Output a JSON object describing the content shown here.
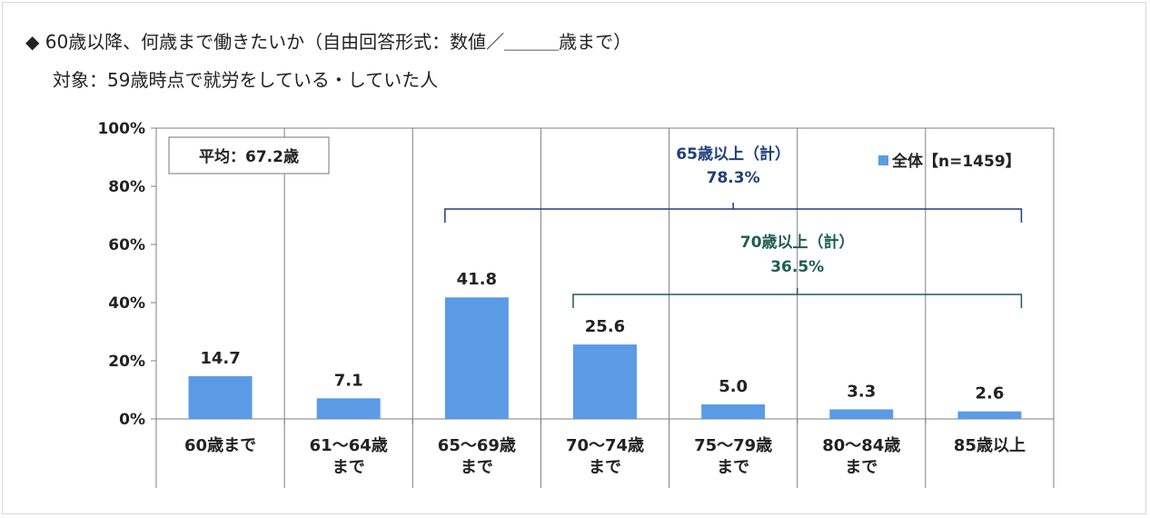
{
  "header": {
    "title": "◆ 60歳以降、何歳まで働きたいか（自由回答形式：数値／＿＿＿歳まで）",
    "subtitle": "対象：59歳時点で就労をしている・していた人"
  },
  "chart_data": {
    "type": "bar",
    "categories": [
      [
        "60歳まで"
      ],
      [
        "61～64歳",
        "まで"
      ],
      [
        "65～69歳",
        "まで"
      ],
      [
        "70～74歳",
        "まで"
      ],
      [
        "75～79歳",
        "まで"
      ],
      [
        "80～84歳",
        "まで"
      ],
      [
        "85歳以上"
      ]
    ],
    "series": [
      {
        "name": "全体【n=1459】",
        "values": [
          14.7,
          7.1,
          41.8,
          25.6,
          5.0,
          3.3,
          2.6
        ],
        "color": "#5b9be6"
      }
    ],
    "data_labels": [
      "14.7",
      "7.1",
      "41.8",
      "25.6",
      "5.0",
      "3.3",
      "2.6"
    ],
    "ylim": [
      0,
      100
    ],
    "yticks": [
      "0%",
      "20%",
      "40%",
      "60%",
      "80%",
      "100%"
    ],
    "grid": "vertical category separators",
    "legend": {
      "position": "top-right",
      "label": "全体【n=1459】"
    },
    "annotations": {
      "average_box": "平均：67.2歳",
      "bracket_65": {
        "line1": "65歳以上（計）",
        "line2": "78.3%",
        "from_category": 2,
        "to_category": 6,
        "color": "#1f3f7a"
      },
      "bracket_70": {
        "line1": "70歳以上（計）",
        "line2": "36.5%",
        "from_category": 3,
        "to_category": 6,
        "color": "#1e5e50"
      }
    }
  }
}
